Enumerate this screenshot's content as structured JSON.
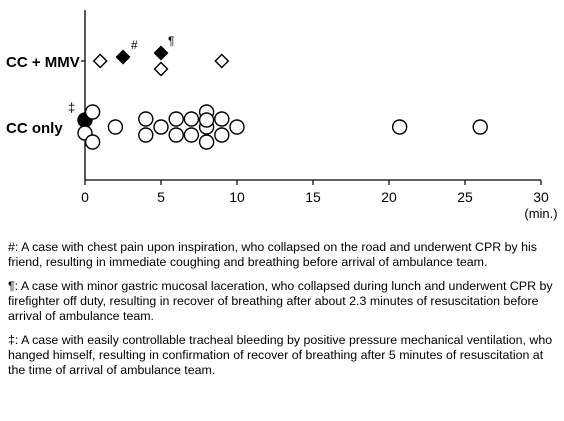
{
  "chart_data": {
    "type": "scatter",
    "title": "",
    "xlabel": "",
    "x_unit": "(min.)",
    "xlim": [
      0,
      30
    ],
    "x_ticks": [
      0,
      5,
      10,
      15,
      20,
      25,
      30
    ],
    "categories": [
      "CC + MMV",
      "CC only"
    ],
    "series": [
      {
        "category": "CC + MMV",
        "points": [
          {
            "x": 1.0,
            "marker": "open-diamond"
          },
          {
            "x": 2.5,
            "marker": "filled-diamond",
            "annotation": "#"
          },
          {
            "x": 5.0,
            "marker": "filled-diamond",
            "annotation": "¶"
          },
          {
            "x": 5.0,
            "marker": "open-diamond"
          },
          {
            "x": 9.0,
            "marker": "open-diamond"
          }
        ]
      },
      {
        "category": "CC only",
        "points": [
          {
            "x": 0.0,
            "marker": "filled-circle",
            "annotation": "‡"
          },
          {
            "x": 0.0,
            "marker": "open-circle"
          },
          {
            "x": 0.5,
            "marker": "open-circle"
          },
          {
            "x": 0.5,
            "marker": "open-circle"
          },
          {
            "x": 2.0,
            "marker": "open-circle"
          },
          {
            "x": 4.0,
            "marker": "open-circle"
          },
          {
            "x": 4.0,
            "marker": "open-circle"
          },
          {
            "x": 5.0,
            "marker": "open-circle"
          },
          {
            "x": 6.0,
            "marker": "open-circle"
          },
          {
            "x": 6.0,
            "marker": "open-circle"
          },
          {
            "x": 7.0,
            "marker": "open-circle"
          },
          {
            "x": 7.0,
            "marker": "open-circle"
          },
          {
            "x": 8.0,
            "marker": "open-circle"
          },
          {
            "x": 8.0,
            "marker": "open-circle"
          },
          {
            "x": 8.0,
            "marker": "open-circle"
          },
          {
            "x": 8.0,
            "marker": "open-circle"
          },
          {
            "x": 9.0,
            "marker": "open-circle"
          },
          {
            "x": 9.0,
            "marker": "open-circle"
          },
          {
            "x": 10.0,
            "marker": "open-circle"
          },
          {
            "x": 20.7,
            "marker": "open-circle"
          },
          {
            "x": 26.0,
            "marker": "open-circle"
          }
        ]
      }
    ]
  },
  "footnotes": {
    "hash": "#:  A case with chest pain upon inspiration, who collapsed on the road and underwent CPR by his friend, resulting in immediate coughing and breathing before arrival of ambulance team.",
    "pilcrow": "¶:  A case with minor gastric mucosal laceration, who collapsed during lunch and underwent CPR by firefighter off duty, resulting in recover of breathing after about 2.3 minutes of resuscitation before arrival of ambulance team.",
    "dagger": "‡:  A case with easily controllable tracheal bleeding by positive pressure mechanical ventilation, who hanged himself, resulting in confirmation of recover of breathing after 5 minutes of resuscitation at the time of arrival of ambulance team."
  }
}
